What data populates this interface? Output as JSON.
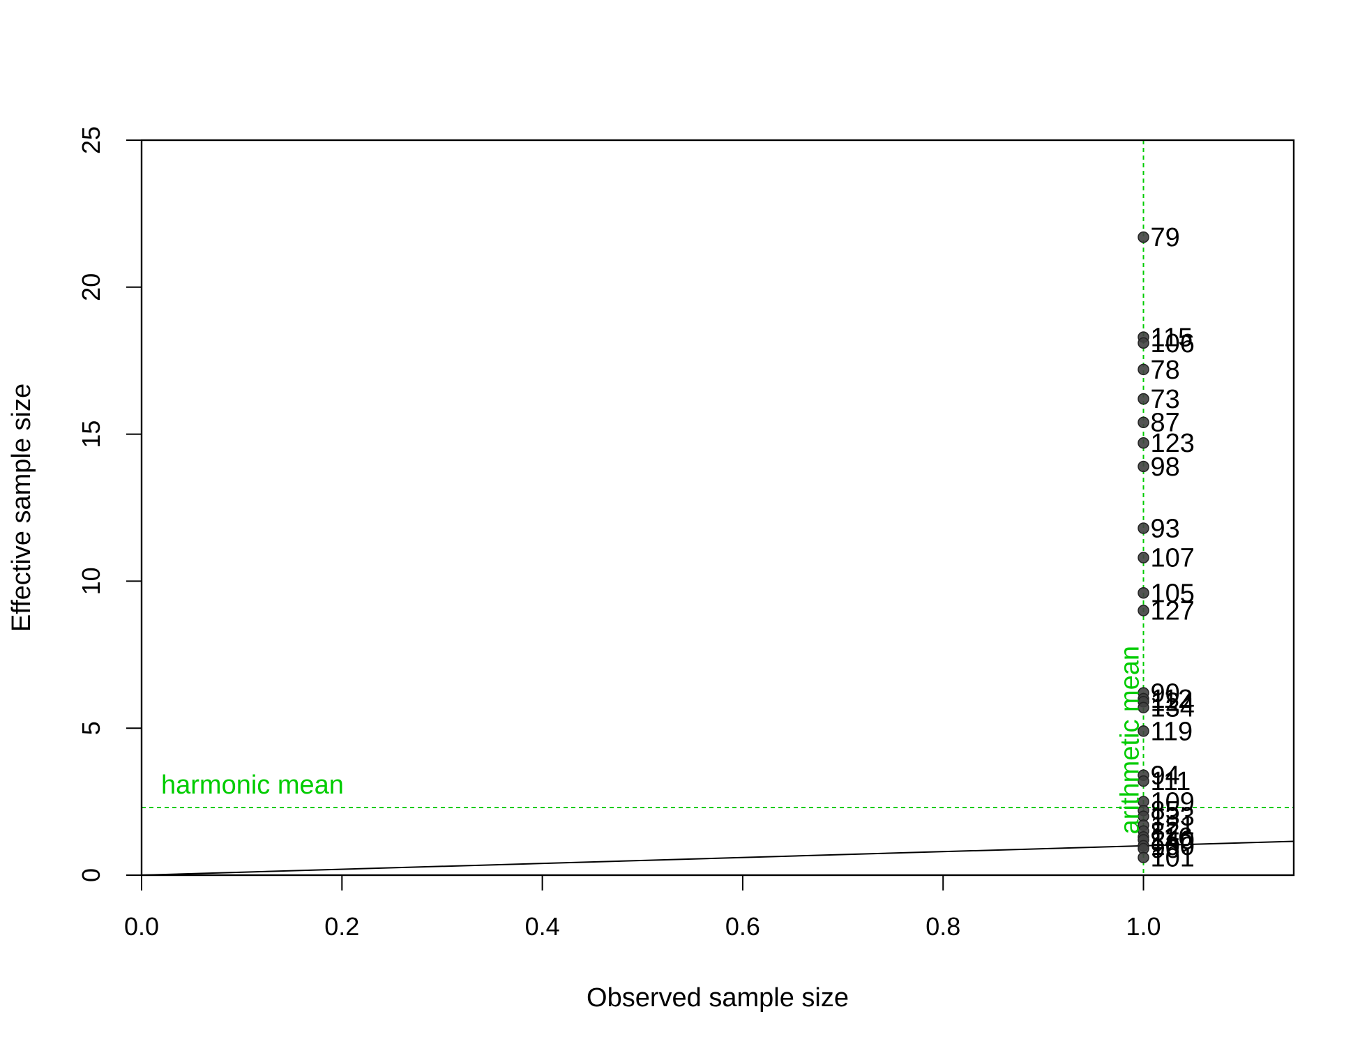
{
  "chart_data": {
    "type": "scatter",
    "xlabel": "Observed sample size",
    "ylabel": "Effective sample size",
    "xlim": [
      0,
      1.15
    ],
    "ylim": [
      0,
      25
    ],
    "x_ticks": [
      "0.0",
      "0.2",
      "0.4",
      "0.6",
      "0.8",
      "1.0"
    ],
    "x_tick_values": [
      0,
      0.2,
      0.4,
      0.6,
      0.8,
      1.0
    ],
    "y_ticks": [
      "0",
      "5",
      "10",
      "15",
      "20",
      "25"
    ],
    "y_tick_values": [
      0,
      5,
      10,
      15,
      20,
      25
    ],
    "grid": false,
    "point_color": "#404040",
    "points": [
      {
        "label": "79",
        "x": 1.0,
        "y": 21.7
      },
      {
        "label": "115",
        "x": 1.0,
        "y": 18.3
      },
      {
        "label": "106",
        "x": 1.0,
        "y": 18.1
      },
      {
        "label": "78",
        "x": 1.0,
        "y": 17.2
      },
      {
        "label": "73",
        "x": 1.0,
        "y": 16.2
      },
      {
        "label": "87",
        "x": 1.0,
        "y": 15.4
      },
      {
        "label": "123",
        "x": 1.0,
        "y": 14.7
      },
      {
        "label": "98",
        "x": 1.0,
        "y": 13.9
      },
      {
        "label": "93",
        "x": 1.0,
        "y": 11.8
      },
      {
        "label": "107",
        "x": 1.0,
        "y": 10.8
      },
      {
        "label": "105",
        "x": 1.0,
        "y": 9.6
      },
      {
        "label": "127",
        "x": 1.0,
        "y": 9.0
      },
      {
        "label": "90",
        "x": 1.0,
        "y": 6.2
      },
      {
        "label": "112",
        "x": 1.0,
        "y": 6.0
      },
      {
        "label": "124",
        "x": 1.0,
        "y": 5.9
      },
      {
        "label": "134",
        "x": 1.0,
        "y": 5.7
      },
      {
        "label": "119",
        "x": 1.0,
        "y": 4.9
      },
      {
        "label": "94",
        "x": 1.0,
        "y": 3.4
      },
      {
        "label": "111",
        "x": 1.0,
        "y": 3.2
      },
      {
        "label": "109",
        "x": 1.0,
        "y": 2.5
      },
      {
        "label": "85",
        "x": 1.0,
        "y": 2.2
      },
      {
        "label": "133",
        "x": 1.0,
        "y": 2.0
      },
      {
        "label": "121",
        "x": 1.0,
        "y": 1.7
      },
      {
        "label": "82",
        "x": 1.0,
        "y": 1.5
      },
      {
        "label": "116",
        "x": 1.0,
        "y": 1.3
      },
      {
        "label": "140",
        "x": 1.0,
        "y": 1.2
      },
      {
        "label": "100",
        "x": 1.0,
        "y": 1.0
      },
      {
        "label": "96",
        "x": 1.0,
        "y": 0.9
      },
      {
        "label": "101",
        "x": 1.0,
        "y": 0.6
      }
    ],
    "reference_lines": {
      "identity_line": {
        "slope": 1,
        "intercept": 0,
        "color": "#000000"
      },
      "harmonic_mean": {
        "label": "harmonic mean",
        "y": 2.3,
        "color": "#00cc00"
      },
      "arithmetic_mean": {
        "label": "arithmetic mean",
        "x": 1.0,
        "color": "#00cc00"
      }
    }
  }
}
